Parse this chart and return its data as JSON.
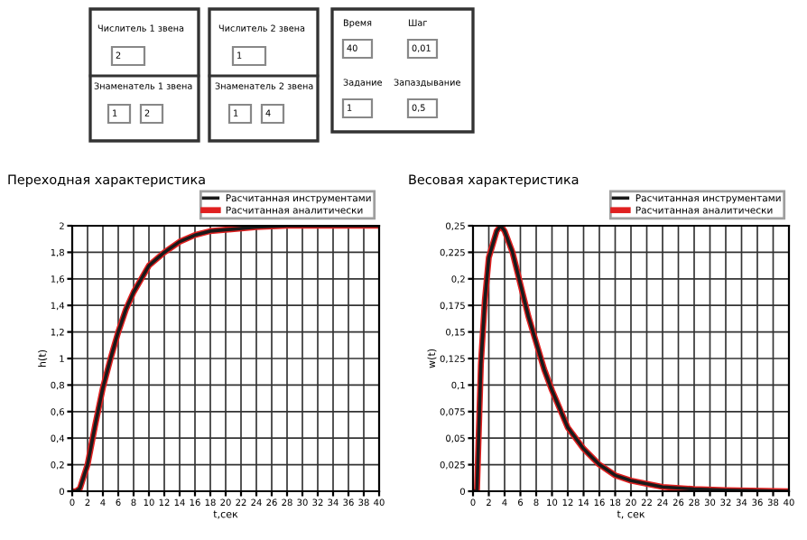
{
  "chart_data": [
    {
      "type": "other",
      "annotations": [
        "Числитель 1 звена",
        "2",
        "Знаменатель 1 звена",
        "1",
        "2",
        "Числитель 2 звена",
        "1",
        "Знаменатель 2 звена",
        "1",
        "4",
        "Время",
        "40",
        "Шаг",
        "0,01",
        "Задание",
        "1",
        "Запаздывание",
        "0,5"
      ]
    },
    {
      "type": "line",
      "title": "Переходная характеристика",
      "xlabel": "t,сек",
      "ylabel": "h(t)",
      "grid": true,
      "legend": "top right",
      "xlim": [
        0,
        40
      ],
      "xticks": [
        0,
        2,
        4,
        6,
        8,
        10,
        12,
        14,
        16,
        18,
        20,
        22,
        24,
        26,
        28,
        30,
        32,
        34,
        36,
        38,
        40
      ],
      "ylim": [
        0,
        2
      ],
      "yticks": [
        0,
        {
          "value": 0.2,
          "label": "0,2"
        },
        {
          "value": 0.4,
          "label": "0,4"
        },
        {
          "value": 0.6,
          "label": "0,6"
        },
        {
          "value": 0.8,
          "label": "0,8"
        },
        1,
        {
          "value": 1.2,
          "label": "1,2"
        },
        {
          "value": 1.4,
          "label": "1,4"
        },
        {
          "value": 1.6,
          "label": "1,6"
        },
        {
          "value": 1.8,
          "label": "1,8"
        },
        2
      ],
      "x": [
        0,
        0.5,
        1,
        2,
        3,
        4,
        5,
        6,
        7,
        8,
        9,
        10,
        12,
        14,
        16,
        18,
        20,
        24,
        28,
        40
      ],
      "series": [
        {
          "name": "Расчитанная аналитически",
          "color": "#e02020",
          "values": [
            0,
            0,
            0.02,
            0.2,
            0.5,
            0.78,
            1.0,
            1.2,
            1.37,
            1.5,
            1.6,
            1.7,
            1.8,
            1.88,
            1.93,
            1.96,
            1.97,
            1.99,
            2.0,
            2.0
          ]
        },
        {
          "name": "Расчитанная инструментами",
          "color": "#1a1a1a",
          "values": [
            0,
            0,
            0.02,
            0.2,
            0.5,
            0.78,
            1.0,
            1.2,
            1.37,
            1.5,
            1.6,
            1.7,
            1.8,
            1.88,
            1.93,
            1.96,
            1.97,
            1.99,
            2.0,
            2.0
          ]
        }
      ]
    },
    {
      "type": "line",
      "title": "Весовая характеристика",
      "xlabel": "t, сек",
      "ylabel": "w(t)",
      "grid": true,
      "legend": "top right",
      "xlim": [
        0,
        40
      ],
      "xticks": [
        0,
        2,
        4,
        6,
        8,
        10,
        12,
        14,
        16,
        18,
        20,
        22,
        24,
        26,
        28,
        30,
        32,
        34,
        36,
        38,
        40
      ],
      "ylim": [
        0,
        0.25
      ],
      "yticks": [
        0,
        {
          "value": 0.025,
          "label": "0,025"
        },
        {
          "value": 0.05,
          "label": "0,05"
        },
        {
          "value": 0.075,
          "label": "0,075"
        },
        {
          "value": 0.1,
          "label": "0,1"
        },
        {
          "value": 0.125,
          "label": "0,125"
        },
        {
          "value": 0.15,
          "label": "0,15"
        },
        {
          "value": 0.175,
          "label": "0,175"
        },
        {
          "value": 0.2,
          "label": "0,2"
        },
        {
          "value": 0.225,
          "label": "0,225"
        },
        {
          "value": 0.25,
          "label": "0,25"
        }
      ],
      "x": [
        0,
        0.5,
        1,
        1.5,
        2,
        3,
        3.5,
        4,
        5,
        6,
        7,
        8,
        9,
        10,
        12,
        14,
        16,
        18,
        20,
        24,
        28,
        32,
        40
      ],
      "series": [
        {
          "name": "Расчитанная аналитически",
          "color": "#e02020",
          "values": [
            0,
            0,
            0.12,
            0.18,
            0.22,
            0.245,
            0.25,
            0.245,
            0.225,
            0.195,
            0.165,
            0.14,
            0.115,
            0.095,
            0.06,
            0.04,
            0.025,
            0.015,
            0.01,
            0.004,
            0.002,
            0.001,
            0
          ]
        },
        {
          "name": "Расчитанная инструментами",
          "color": "#1a1a1a",
          "values": [
            0,
            0,
            0.12,
            0.18,
            0.22,
            0.245,
            0.25,
            0.245,
            0.225,
            0.195,
            0.165,
            0.14,
            0.115,
            0.095,
            0.06,
            0.04,
            0.025,
            0.015,
            0.01,
            0.004,
            0.002,
            0.001,
            0
          ]
        }
      ]
    }
  ]
}
